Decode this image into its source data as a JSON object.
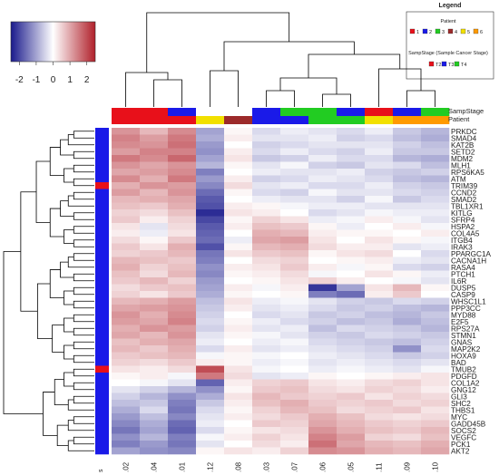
{
  "chart_data": {
    "type": "heatmap",
    "title": "",
    "xlabel": "",
    "ylabel": "",
    "color_key": {
      "ticks": [
        "-2",
        "-1",
        "0",
        "1",
        "2"
      ],
      "range": [
        -2.5,
        2.5
      ],
      "low_color": "#1a1a8c",
      "mid_color": "#ffffff",
      "high_color": "#b0202a"
    },
    "column_bar_labels": [
      "SampStage",
      "Patient"
    ],
    "corner_label": "s",
    "columns": [
      ".02",
      ".04",
      ".01",
      ".12",
      ".08",
      ".03",
      ".07",
      ".06",
      ".05",
      ".11",
      ".09",
      ".10"
    ],
    "column_patient": [
      "1",
      "1",
      "1",
      "5",
      "4",
      "2",
      "2",
      "3",
      "3",
      "5",
      "6",
      "6"
    ],
    "column_stage": [
      "T2",
      "T2",
      "T3",
      "T2",
      "T2",
      "T3",
      "T4",
      "T4",
      "T3",
      "T2",
      "T3",
      "T4"
    ],
    "rows": [
      "PRKDC",
      "SMAD4",
      "KAT2B",
      "SETD2",
      "MDM2",
      "MLH1",
      "RPS6KA5",
      "ATM",
      "TRIM39",
      "CCND2",
      "SMAD2",
      "TBL1XR1",
      "KITLG",
      "SFRP4",
      "HSPA2",
      "COL4A5",
      "ITGB4",
      "IRAK3",
      "PPARGC1A",
      "CACNA1H",
      "RASA4",
      "PTCH1",
      "IL6R",
      "DUSP5",
      "CASP9",
      "WHSC1L1",
      "PPP3CC",
      "MYD88",
      "E2F5",
      "RPS27A",
      "STMN1",
      "GNAS",
      "MAP2K2",
      "HOXA9",
      "BAD",
      "TMUB2",
      "PDGFD",
      "COL1A2",
      "GNG12",
      "GLI3",
      "SHC2",
      "THBS1",
      "MYC",
      "GADD45B",
      "SOCS2",
      "VEGFC",
      "PCK1",
      "AKT2"
    ],
    "row_side_colors": [
      "blue",
      "blue",
      "blue",
      "blue",
      "blue",
      "blue",
      "blue",
      "blue",
      "red",
      "blue",
      "blue",
      "blue",
      "blue",
      "blue",
      "blue",
      "blue",
      "blue",
      "blue",
      "blue",
      "blue",
      "blue",
      "blue",
      "blue",
      "blue",
      "blue",
      "blue",
      "blue",
      "blue",
      "blue",
      "blue",
      "blue",
      "blue",
      "blue",
      "blue",
      "blue",
      "red",
      "blue",
      "blue",
      "blue",
      "blue",
      "blue",
      "blue",
      "blue",
      "blue",
      "blue",
      "blue",
      "blue",
      "blue"
    ],
    "values": [
      [
        1.2,
        0.8,
        1.3,
        -1.0,
        0.1,
        -0.4,
        -0.2,
        -0.3,
        -0.4,
        -0.2,
        -0.6,
        -0.8
      ],
      [
        1.4,
        1.1,
        1.5,
        -0.9,
        0.2,
        -0.3,
        -0.3,
        -0.2,
        -0.5,
        -0.4,
        -0.7,
        -0.9
      ],
      [
        1.3,
        1.2,
        1.6,
        -1.1,
        0.0,
        -0.5,
        -0.4,
        -0.3,
        -0.3,
        -0.3,
        -0.5,
        -0.7
      ],
      [
        1.1,
        1.4,
        1.4,
        -1.2,
        0.2,
        -0.4,
        -0.2,
        -0.4,
        -0.5,
        -0.2,
        -0.6,
        -0.6
      ],
      [
        1.5,
        1.3,
        1.7,
        -1.0,
        0.3,
        -0.6,
        -0.5,
        -0.2,
        -0.4,
        -0.4,
        -0.8,
        -0.9
      ],
      [
        1.2,
        1.0,
        1.2,
        -0.8,
        0.1,
        -0.3,
        -0.1,
        -0.5,
        -0.6,
        -0.3,
        -0.4,
        -0.7
      ],
      [
        1.0,
        1.1,
        1.3,
        -1.4,
        0.0,
        -0.2,
        -0.3,
        -0.3,
        -0.2,
        -0.5,
        -0.6,
        -0.5
      ],
      [
        1.3,
        0.9,
        1.5,
        -1.1,
        0.2,
        -0.5,
        -0.4,
        -0.2,
        -0.3,
        -0.4,
        -0.7,
        -0.8
      ],
      [
        0.9,
        1.2,
        1.1,
        -1.3,
        0.4,
        -0.3,
        -0.2,
        -0.4,
        -0.4,
        -0.2,
        -0.5,
        -0.6
      ],
      [
        1.1,
        0.8,
        1.2,
        -1.6,
        0.1,
        -0.4,
        -0.5,
        -0.1,
        -0.3,
        -0.3,
        -0.4,
        -0.5
      ],
      [
        0.8,
        0.9,
        1.0,
        -1.8,
        0.0,
        -0.2,
        -0.3,
        -0.3,
        -0.5,
        -0.1,
        -0.6,
        -0.4
      ],
      [
        0.7,
        0.6,
        0.9,
        -1.9,
        0.2,
        0.1,
        -0.1,
        -0.2,
        -0.2,
        -0.3,
        -0.3,
        -0.3
      ],
      [
        0.5,
        0.4,
        0.7,
        -2.3,
        0.3,
        0.2,
        0.0,
        -0.4,
        -0.3,
        -0.1,
        -0.2,
        -0.2
      ],
      [
        0.6,
        0.2,
        0.5,
        -2.0,
        0.1,
        0.5,
        0.3,
        -0.2,
        -0.1,
        0.2,
        -0.1,
        -0.3
      ],
      [
        0.3,
        -0.3,
        0.4,
        -1.8,
        0.2,
        0.7,
        0.6,
        0.1,
        -0.2,
        0.0,
        0.2,
        -0.1
      ],
      [
        0.2,
        -0.2,
        0.3,
        -1.7,
        0.0,
        0.9,
        0.8,
        0.2,
        0.1,
        0.1,
        0.0,
        0.2
      ],
      [
        0.4,
        0.1,
        0.6,
        -1.6,
        -0.2,
        1.0,
        1.1,
        0.3,
        0.0,
        0.3,
        0.1,
        -0.1
      ],
      [
        0.6,
        0.3,
        0.9,
        -1.9,
        0.1,
        0.8,
        0.9,
        0.4,
        0.2,
        0.2,
        -0.3,
        -0.2
      ],
      [
        0.5,
        0.6,
        0.8,
        -1.5,
        0.3,
        0.6,
        0.7,
        0.1,
        0.3,
        0.4,
        0.0,
        -0.4
      ],
      [
        0.8,
        0.7,
        0.6,
        -1.4,
        0.0,
        0.4,
        0.5,
        0.0,
        0.1,
        0.2,
        -0.2,
        -0.3
      ],
      [
        0.9,
        0.5,
        0.7,
        -1.2,
        0.2,
        0.3,
        0.6,
        0.2,
        -0.1,
        0.1,
        -0.4,
        -0.5
      ],
      [
        0.7,
        0.4,
        0.8,
        -1.3,
        0.1,
        0.2,
        0.4,
        -0.1,
        0.0,
        0.3,
        0.1,
        -0.2
      ],
      [
        0.6,
        0.8,
        0.5,
        -1.1,
        0.0,
        0.1,
        0.3,
        0.5,
        0.2,
        0.0,
        -0.1,
        -0.3
      ],
      [
        0.4,
        0.6,
        0.7,
        -1.0,
        0.2,
        -0.1,
        0.2,
        -2.2,
        -1.0,
        0.3,
        0.8,
        0.1
      ],
      [
        0.5,
        0.3,
        0.6,
        -0.9,
        0.1,
        0.0,
        0.1,
        -1.4,
        -1.6,
        0.2,
        0.6,
        0.0
      ],
      [
        0.8,
        0.9,
        1.1,
        -0.7,
        0.3,
        -0.2,
        -0.1,
        -0.3,
        -0.5,
        -0.6,
        -0.4,
        -0.5
      ],
      [
        1.0,
        1.1,
        1.2,
        -0.6,
        0.2,
        -0.3,
        -0.2,
        -0.4,
        -0.6,
        -0.5,
        -0.7,
        -0.8
      ],
      [
        1.2,
        0.9,
        1.3,
        -0.5,
        0.0,
        -0.4,
        -0.3,
        -0.6,
        -0.5,
        -0.7,
        -0.8,
        -0.6
      ],
      [
        1.1,
        1.0,
        1.4,
        -0.4,
        0.1,
        -0.2,
        -0.4,
        -0.5,
        -0.7,
        -0.6,
        -0.9,
        -0.7
      ],
      [
        0.9,
        1.2,
        1.1,
        -0.5,
        0.2,
        -0.3,
        -0.2,
        -0.7,
        -0.4,
        -0.5,
        -0.6,
        -0.8
      ],
      [
        1.0,
        0.8,
        1.2,
        -0.3,
        0.1,
        -0.1,
        -0.3,
        -0.5,
        -0.6,
        -0.4,
        -0.5,
        -0.6
      ],
      [
        0.7,
        0.9,
        1.0,
        -0.2,
        0.0,
        -0.2,
        -0.1,
        -0.4,
        -0.5,
        -0.6,
        -0.7,
        -0.5
      ],
      [
        0.8,
        0.6,
        0.9,
        -0.4,
        0.2,
        -0.3,
        -0.2,
        -0.3,
        -0.4,
        -0.5,
        -1.2,
        -0.4
      ],
      [
        0.6,
        0.7,
        0.8,
        -0.1,
        0.1,
        -0.1,
        0.0,
        -0.2,
        -0.3,
        -0.4,
        -0.6,
        -0.5
      ],
      [
        0.5,
        0.4,
        0.6,
        0.2,
        0.1,
        -0.2,
        -0.1,
        -0.3,
        -0.2,
        -0.3,
        -0.4,
        -0.3
      ],
      [
        0.3,
        0.2,
        0.4,
        2.0,
        0.3,
        -0.1,
        0.0,
        -0.2,
        -0.1,
        -0.2,
        -0.3,
        -0.1
      ],
      [
        0.1,
        0.2,
        -0.1,
        1.5,
        0.4,
        -0.3,
        -0.2,
        0.1,
        0.0,
        0.1,
        0.2,
        0.3
      ],
      [
        0.0,
        -0.1,
        -0.3,
        -1.7,
        0.2,
        0.5,
        0.6,
        0.3,
        0.2,
        0.4,
        0.5,
        0.3
      ],
      [
        -0.3,
        -0.5,
        -0.8,
        -1.2,
        0.1,
        0.6,
        0.7,
        0.4,
        0.3,
        0.5,
        0.4,
        0.2
      ],
      [
        -0.5,
        -0.8,
        -1.2,
        -0.9,
        0.3,
        0.8,
        0.6,
        0.5,
        0.6,
        0.3,
        0.5,
        0.4
      ],
      [
        -0.7,
        -0.6,
        -1.4,
        -0.6,
        0.2,
        0.7,
        0.9,
        0.6,
        0.5,
        0.6,
        0.4,
        0.5
      ],
      [
        -0.9,
        -0.4,
        -1.5,
        -0.4,
        0.1,
        0.5,
        0.8,
        0.7,
        0.4,
        0.5,
        0.6,
        0.3
      ],
      [
        -1.1,
        -0.7,
        -1.3,
        -0.3,
        0.2,
        0.4,
        0.6,
        0.9,
        0.7,
        0.4,
        0.3,
        0.4
      ],
      [
        -1.3,
        -0.9,
        -1.6,
        -0.2,
        0.0,
        0.6,
        0.5,
        1.0,
        0.8,
        0.6,
        0.5,
        0.6
      ],
      [
        -1.5,
        -1.0,
        -1.7,
        -0.4,
        0.1,
        0.3,
        0.4,
        1.2,
        0.9,
        0.7,
        0.6,
        0.8
      ],
      [
        -1.2,
        -0.8,
        -1.4,
        -0.1,
        0.2,
        0.5,
        0.3,
        1.4,
        1.1,
        0.5,
        0.4,
        0.7
      ],
      [
        -1.4,
        -1.1,
        -1.5,
        -0.3,
        0.0,
        0.4,
        0.2,
        1.6,
        1.0,
        0.8,
        0.7,
        0.9
      ],
      [
        -1.0,
        -1.2,
        -1.3,
        0.1,
        0.3,
        0.2,
        0.5,
        1.3,
        1.2,
        0.9,
        0.8,
        1.0
      ]
    ]
  },
  "legend": {
    "title": "Legend",
    "patient_title": "Patient",
    "patient_items": [
      {
        "label": "1",
        "color": "#e8101a"
      },
      {
        "label": "2",
        "color": "#1a1ae8"
      },
      {
        "label": "3",
        "color": "#22cc22"
      },
      {
        "label": "4",
        "color": "#9c2a2a"
      },
      {
        "label": "5",
        "color": "#f2e000"
      },
      {
        "label": "6",
        "color": "#ff9a00"
      }
    ],
    "stage_title": "SampStage (Sample Cancer Stage)",
    "stage_items": [
      {
        "label": "T2",
        "color": "#e8101a"
      },
      {
        "label": "T3",
        "color": "#1a1ae8"
      },
      {
        "label": "T4",
        "color": "#22cc22"
      }
    ]
  }
}
